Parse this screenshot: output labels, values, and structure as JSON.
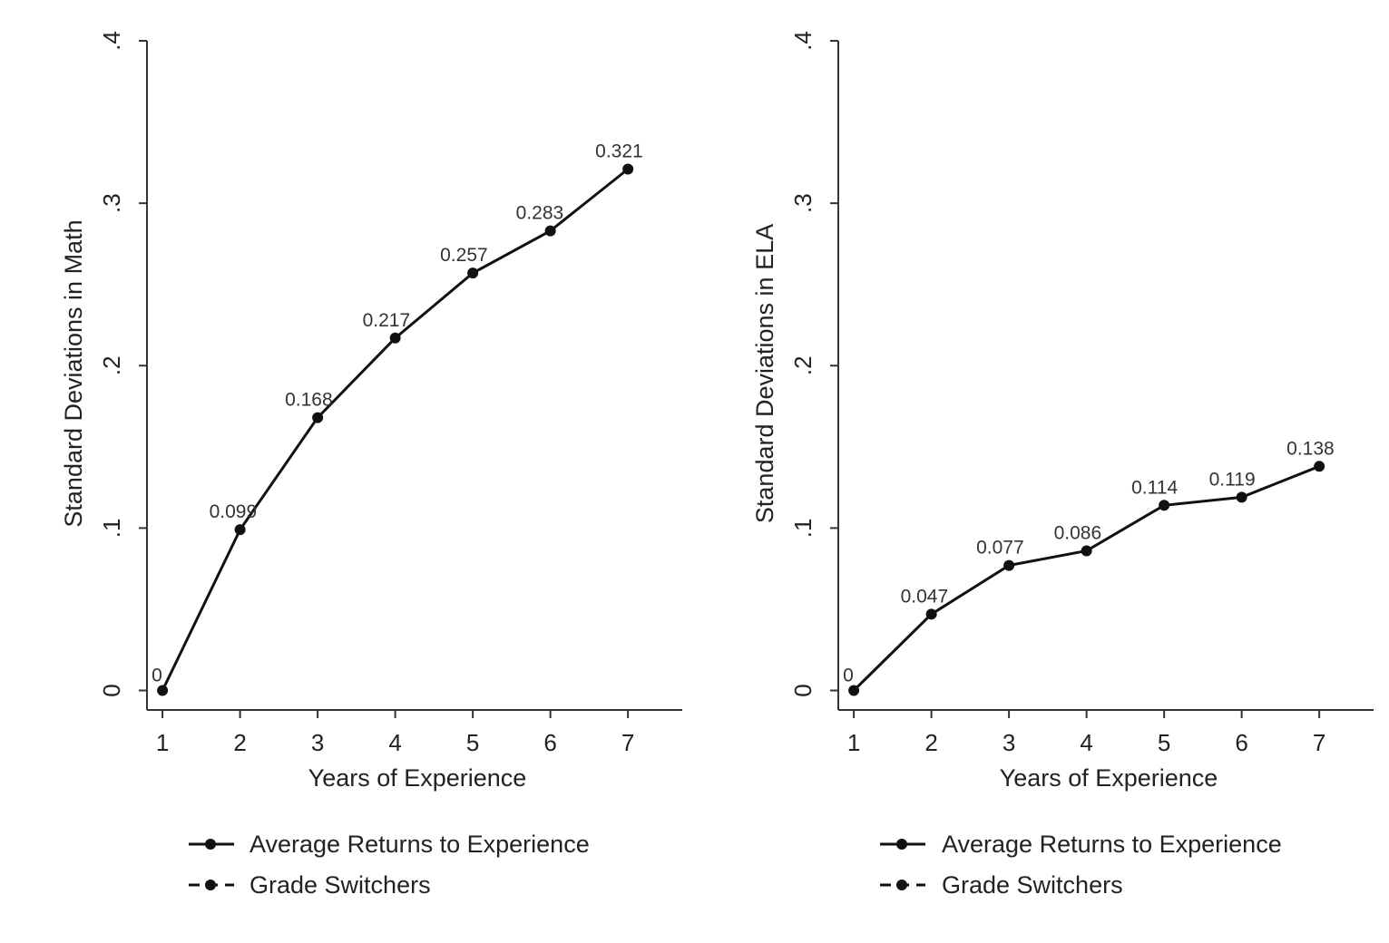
{
  "colors": {
    "line": "#111111",
    "axis": "#333333",
    "text": "#222222"
  },
  "legend": {
    "entries": [
      {
        "label": "Average Returns to Experience",
        "style": "solid"
      },
      {
        "label": "Grade Switchers",
        "style": "dashed"
      }
    ]
  },
  "chart_data": [
    {
      "type": "line",
      "xlabel": "Years of Experience",
      "ylabel": "Standard Deviations in Math",
      "x": [
        1,
        2,
        3,
        4,
        5,
        6,
        7
      ],
      "xlim": [
        0.8,
        7.7
      ],
      "ylim": [
        -0.012,
        0.4
      ],
      "yticks": [
        0,
        0.1,
        0.2,
        0.3,
        0.4
      ],
      "ytick_labels": [
        "0",
        ".1",
        ".2",
        ".3",
        ".4"
      ],
      "xtick_labels": [
        "1",
        "2",
        "3",
        "4",
        "5",
        "6",
        "7"
      ],
      "grid": false,
      "legend_position": "bottom",
      "series": [
        {
          "name": "Average Returns to Experience",
          "values": [
            0,
            0.099,
            0.168,
            0.217,
            0.257,
            0.283,
            0.321
          ],
          "data_labels": [
            "0",
            "0.099",
            "0.168",
            "0.217",
            "0.257",
            "0.283",
            "0.321"
          ]
        }
      ]
    },
    {
      "type": "line",
      "xlabel": "Years of Experience",
      "ylabel": "Standard Deviations in ELA",
      "x": [
        1,
        2,
        3,
        4,
        5,
        6,
        7
      ],
      "xlim": [
        0.8,
        7.7
      ],
      "ylim": [
        -0.012,
        0.4
      ],
      "yticks": [
        0,
        0.1,
        0.2,
        0.3,
        0.4
      ],
      "ytick_labels": [
        "0",
        ".1",
        ".2",
        ".3",
        ".4"
      ],
      "xtick_labels": [
        "1",
        "2",
        "3",
        "4",
        "5",
        "6",
        "7"
      ],
      "grid": false,
      "legend_position": "bottom",
      "series": [
        {
          "name": "Average Returns to Experience",
          "values": [
            0,
            0.047,
            0.077,
            0.086,
            0.114,
            0.119,
            0.138
          ],
          "data_labels": [
            "0",
            "0.047",
            "0.077",
            "0.086",
            "0.114",
            "0.119",
            "0.138"
          ]
        }
      ]
    }
  ]
}
